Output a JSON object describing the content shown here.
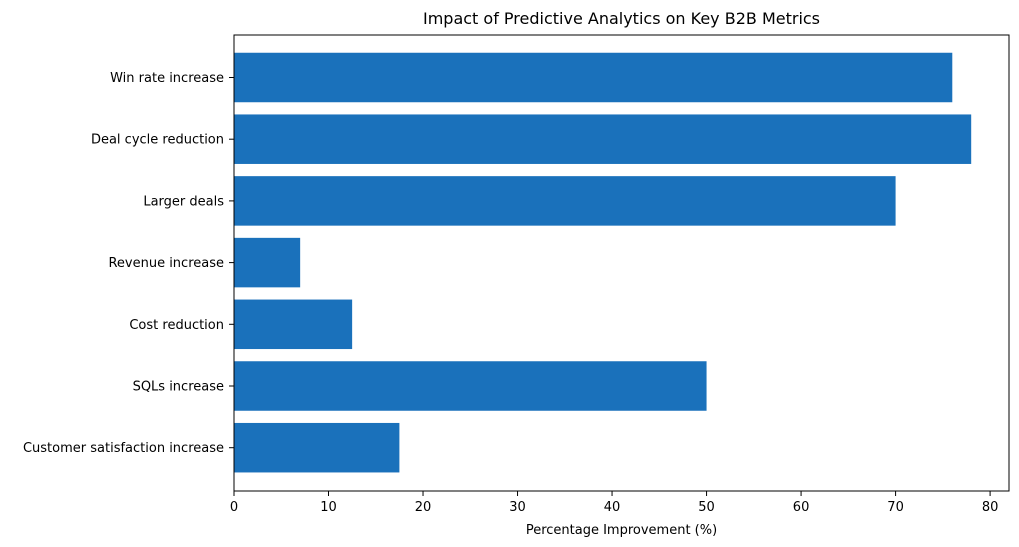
{
  "chart_data": {
    "type": "bar",
    "orientation": "horizontal",
    "title": "Impact of Predictive Analytics on Key B2B Metrics",
    "xlabel": "Percentage Improvement (%)",
    "ylabel": "",
    "xlim": [
      0,
      82
    ],
    "xticks": [
      0,
      10,
      20,
      30,
      40,
      50,
      60,
      70,
      80
    ],
    "grid": false,
    "bar_color": "#1a71bb",
    "categories": [
      "Win rate increase",
      "Deal cycle reduction",
      "Larger deals",
      "Revenue increase",
      "Cost reduction",
      "SQLs increase",
      "Customer satisfaction increase"
    ],
    "values": [
      76,
      78,
      70,
      7,
      12.5,
      50,
      17.5
    ]
  }
}
